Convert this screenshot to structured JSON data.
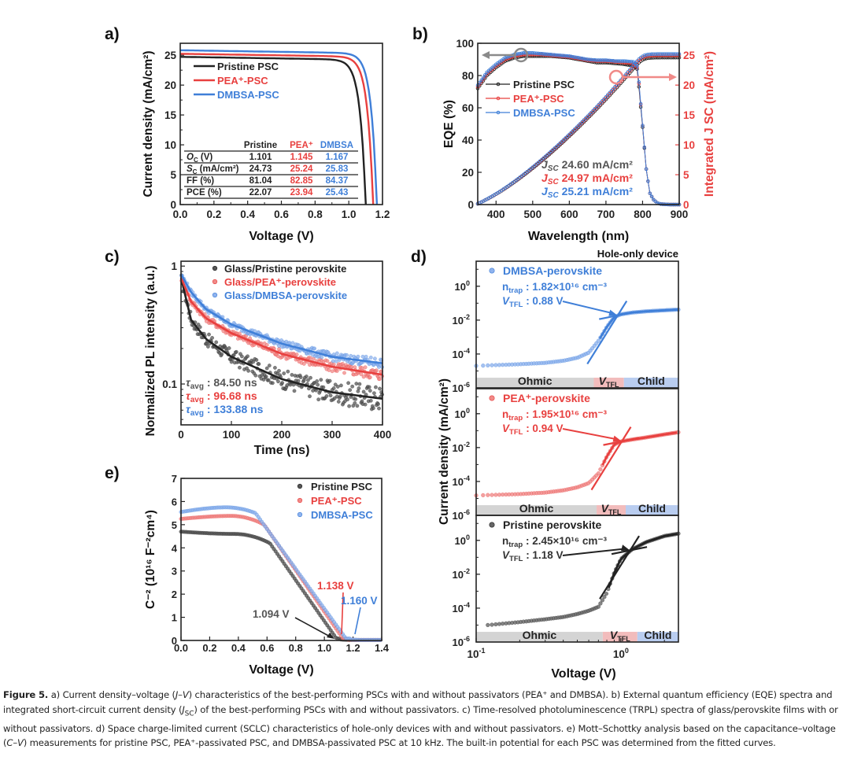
{
  "figure": {
    "caption_label": "Figure 5.",
    "caption_parts": [
      {
        "t": " a) Current density–voltage ("
      },
      {
        "t": "J–V",
        "i": true
      },
      {
        "t": ") characteristics of the best-performing PSCs with and without passivators (PEA⁺ and DMBSA). b) External quantum efficiency (EQE) spectra and integrated short-circuit current density ("
      },
      {
        "t": "J",
        "i": true
      },
      {
        "t": "SC",
        "sub": true
      },
      {
        "t": ") of the best-performing PSCs with and without passivators. c) Time-resolved photoluminescence (TRPL) spectra of glass/perovskite films with or without passivators. d) Space charge-limited current (SCLC) characteristics of hole-only devices with and without passivators. e) Mott–Schottky analysis based on the capacitance–voltage ("
      },
      {
        "t": "C–V",
        "i": true
      },
      {
        "t": ") measurements for pristine PSC, PEA⁺-passivated PSC, and DMBSA-passivated PSC at 10 kHz. The built-in potential for each PSC was determined from the fitted curves."
      }
    ]
  },
  "colors": {
    "pristine": "#222222",
    "pea": "#e8403f",
    "dmbsa": "#3f7fd8",
    "pea_light": "#f08a88",
    "dmbsa_light": "#8fb3ee",
    "gray_arrow": "#8a8a8a",
    "band_ohmic": "#d4d4d4",
    "band_vtfl": "#f2bcbc",
    "band_child": "#b9cdf0"
  },
  "chart_data": [
    {
      "panel": "a)",
      "type": "line",
      "xlabel": "Voltage (V)",
      "ylabel": "Current density (mA/cm²)",
      "xlim": [
        0,
        1.2
      ],
      "ylim": [
        0,
        27
      ],
      "xticks": [
        "0.0",
        "0.2",
        "0.4",
        "0.6",
        "0.8",
        "1.0",
        "1.2"
      ],
      "yticks": [
        "0",
        "5",
        "10",
        "15",
        "20",
        "25"
      ],
      "legend": [
        "Pristine PSC",
        "PEA⁺-PSC",
        "DMBSA-PSC"
      ],
      "legend_position": "top-left",
      "series": [
        {
          "name": "Pristine PSC",
          "voc": 1.101,
          "jsc": 24.73,
          "ff": 81.04,
          "pce": 22.07
        },
        {
          "name": "PEA⁺-PSC",
          "voc": 1.145,
          "jsc": 25.24,
          "ff": 82.85,
          "pce": 23.94
        },
        {
          "name": "DMBSA-PSC",
          "voc": 1.167,
          "jsc": 25.83,
          "ff": 84.37,
          "pce": 25.43
        }
      ],
      "table": {
        "columns": [
          "",
          "Pristine",
          "PEA⁺",
          "DMBSA"
        ],
        "rows": [
          [
            "V_OC (V)",
            "1.101",
            "1.145",
            "1.167"
          ],
          [
            "J_SC (mA/cm²)",
            "24.73",
            "25.24",
            "25.83"
          ],
          [
            "FF (%)",
            "81.04",
            "82.85",
            "84.37"
          ],
          [
            "PCE (%)",
            "22.07",
            "23.94",
            "25.43"
          ]
        ]
      }
    },
    {
      "panel": "b)",
      "type": "line",
      "xlabel": "Wavelength (nm)",
      "ylabel": "EQE (%)",
      "y2label": "Integrated J_SC (mA/cm²)",
      "xlim": [
        350,
        900
      ],
      "ylim": [
        0,
        100
      ],
      "y2lim": [
        0,
        27
      ],
      "xticks": [
        "400",
        "500",
        "600",
        "700",
        "800",
        "900"
      ],
      "yticks": [
        "0",
        "20",
        "40",
        "60",
        "80",
        "100"
      ],
      "y2ticks": [
        "0",
        "5",
        "10",
        "15",
        "20",
        "25"
      ],
      "legend": [
        "Pristine PSC",
        "PEA⁺-PSC",
        "DMBSA-PSC"
      ],
      "legend_position": "center-left",
      "eqe_x": [
        350,
        375,
        400,
        425,
        450,
        475,
        500,
        525,
        550,
        575,
        600,
        625,
        650,
        675,
        700,
        725,
        750,
        775,
        785,
        790,
        800,
        810,
        820,
        830,
        840,
        850,
        875,
        900
      ],
      "series": [
        {
          "name": "Pristine PSC",
          "eqe": [
            72,
            80,
            85,
            89,
            91,
            92,
            92,
            92,
            92,
            91.5,
            91,
            90,
            89,
            88,
            88,
            87.5,
            87,
            86,
            84,
            73,
            48,
            22,
            7,
            3,
            1,
            0.3,
            0,
            0
          ],
          "integrated_jsc": 24.6
        },
        {
          "name": "PEA⁺-PSC",
          "eqe": [
            73,
            81,
            86,
            90,
            92,
            93,
            93,
            93,
            92.5,
            92,
            91.5,
            90.5,
            89.5,
            89,
            89,
            88.5,
            88,
            87.5,
            85,
            75,
            49,
            22,
            7,
            3,
            1,
            0.3,
            0,
            0
          ],
          "integrated_jsc": 24.97
        },
        {
          "name": "DMBSA-PSC",
          "eqe": [
            74,
            82,
            87,
            91,
            93,
            94,
            94,
            93.5,
            93,
            92.5,
            92,
            91,
            90,
            89.5,
            89.5,
            89,
            89,
            88.5,
            86,
            76,
            49,
            22,
            7,
            3,
            1,
            0.3,
            0,
            0
          ],
          "integrated_jsc": 25.21
        }
      ],
      "annotations": [
        "J_SC 24.60 mA/cm²",
        "J_SC 24.97 mA/cm²",
        "J_SC 25.21 mA/cm²"
      ]
    },
    {
      "panel": "c)",
      "type": "scatter",
      "xlabel": "Time (ns)",
      "ylabel": "Normalized PL intensity (a.u.)",
      "xlim": [
        0,
        400
      ],
      "ylim": [
        0.045,
        1.1
      ],
      "yscale": "log",
      "xticks": [
        "0",
        "100",
        "200",
        "300",
        "400"
      ],
      "yticks": [
        "0.1",
        "1"
      ],
      "legend": [
        "Glass/Pristine perovskite",
        "Glass/PEA⁺-perovskite",
        "Glass/DMBSA-perovskite"
      ],
      "legend_position": "top-right",
      "series": [
        {
          "name": "Glass/Pristine perovskite",
          "tau_avg_ns": 84.5,
          "fit_at": {
            "0": 0.8,
            "20": 0.35,
            "50": 0.24,
            "100": 0.17,
            "200": 0.11,
            "300": 0.085,
            "400": 0.075
          }
        },
        {
          "name": "Glass/PEA⁺-perovskite",
          "tau_avg_ns": 96.68,
          "fit_at": {
            "0": 0.8,
            "20": 0.5,
            "50": 0.36,
            "100": 0.27,
            "200": 0.18,
            "300": 0.14,
            "400": 0.12
          }
        },
        {
          "name": "Glass/DMBSA-perovskite",
          "tau_avg_ns": 133.88,
          "fit_at": {
            "0": 0.85,
            "20": 0.6,
            "50": 0.43,
            "100": 0.32,
            "200": 0.22,
            "300": 0.17,
            "400": 0.15
          }
        }
      ],
      "annotations": [
        {
          "label": "τavg",
          "value": ": 84.50 ns"
        },
        {
          "label": "τavg",
          "value": ": 96.68 ns"
        },
        {
          "label": "τavg",
          "value": ": 133.88 ns"
        }
      ]
    },
    {
      "panel": "d)",
      "type": "scatter",
      "title": "Hole-only device",
      "xlabel": "Voltage (V)",
      "ylabel": "Current density (mA/cm²)",
      "xscale": "log",
      "yscale": "log",
      "xlim": [
        0.1,
        2.5
      ],
      "ylim": [
        1e-06,
        30
      ],
      "xticks": [
        "10⁻¹",
        "10⁰"
      ],
      "yticks_exp": [
        -6,
        -4,
        -2,
        0
      ],
      "regions": [
        "Ohmic",
        "V_TFL",
        "Child"
      ],
      "subplots": [
        {
          "name": "DMBSA-perovskite",
          "ntrap": "1.82×10¹⁶ cm⁻³",
          "vtfl": ": 0.88 V",
          "vtfl_value": 0.88,
          "ntrap_value": 1.82e+16,
          "band_edges": [
            0.65,
            1.05
          ],
          "curve_v": [
            0.1,
            0.2,
            0.3,
            0.4,
            0.5,
            0.6,
            0.7,
            0.8,
            0.9,
            1.0,
            1.2,
            1.5,
            2.0,
            2.5
          ],
          "curve_j": [
            2e-05,
            2.5e-05,
            3e-05,
            4e-05,
            6e-05,
            0.00012,
            0.0006,
            0.004,
            0.015,
            0.022,
            0.028,
            0.033,
            0.038,
            0.042
          ]
        },
        {
          "name": "PEA⁺-perovskite",
          "ntrap": "1.95×10¹⁶ cm⁻³",
          "vtfl": ": 0.94 V",
          "vtfl_value": 0.94,
          "ntrap_value": 1.95e+16,
          "band_edges": [
            0.68,
            1.08
          ],
          "curve_v": [
            0.1,
            0.2,
            0.3,
            0.4,
            0.5,
            0.6,
            0.7,
            0.8,
            0.9,
            1.0,
            1.2,
            1.5,
            2.0,
            2.5
          ],
          "curve_j": [
            1.5e-05,
            1.8e-05,
            2.2e-05,
            3e-05,
            4.5e-05,
            8e-05,
            0.0003,
            0.003,
            0.015,
            0.023,
            0.03,
            0.04,
            0.06,
            0.08
          ]
        },
        {
          "name": "Pristine perovskite",
          "ntrap": "2.45×10¹⁶ cm⁻³",
          "vtfl": ": 1.18 V",
          "vtfl_value": 1.18,
          "ntrap_value": 2.45e+16,
          "band_edges": [
            0.75,
            1.3
          ],
          "curve_v": [
            0.12,
            0.2,
            0.3,
            0.4,
            0.5,
            0.6,
            0.7,
            0.8,
            0.9,
            1.0,
            1.2,
            1.5,
            2.0,
            2.5
          ],
          "curve_j": [
            1e-05,
            1.5e-05,
            2.2e-05,
            3e-05,
            4.5e-05,
            7e-05,
            0.00012,
            0.0008,
            0.012,
            0.08,
            0.3,
            0.8,
            1.8,
            2.5
          ]
        }
      ]
    },
    {
      "panel": "e)",
      "type": "scatter",
      "xlabel": "Voltage (V)",
      "ylabel": "C⁻² (10¹⁶ F⁻²cm⁴)",
      "xlim": [
        0,
        1.4
      ],
      "ylim": [
        0,
        7
      ],
      "xticks": [
        "0.0",
        "0.2",
        "0.4",
        "0.6",
        "0.8",
        "1.0",
        "1.2",
        "1.4"
      ],
      "yticks": [
        "0",
        "1",
        "2",
        "3",
        "4",
        "5",
        "6",
        "7"
      ],
      "legend": [
        "Pristine PSC",
        "PEA⁺-PSC",
        "DMBSA-PSC"
      ],
      "legend_position": "top-right",
      "series": [
        {
          "name": "Pristine PSC",
          "vbi": 1.094,
          "plateau": [
            4.7,
            4.6,
            4.5,
            4.2
          ],
          "knee_v": 0.62
        },
        {
          "name": "PEA⁺-PSC",
          "vbi": 1.138,
          "plateau": [
            5.25,
            5.38,
            5.3,
            5.0
          ],
          "knee_v": 0.58
        },
        {
          "name": "DMBSA-PSC",
          "vbi": 1.16,
          "plateau": [
            5.55,
            5.75,
            5.75,
            5.5
          ],
          "knee_v": 0.52
        }
      ],
      "annotations": [
        "1.094 V",
        "1.138 V",
        "1.160 V"
      ]
    }
  ]
}
